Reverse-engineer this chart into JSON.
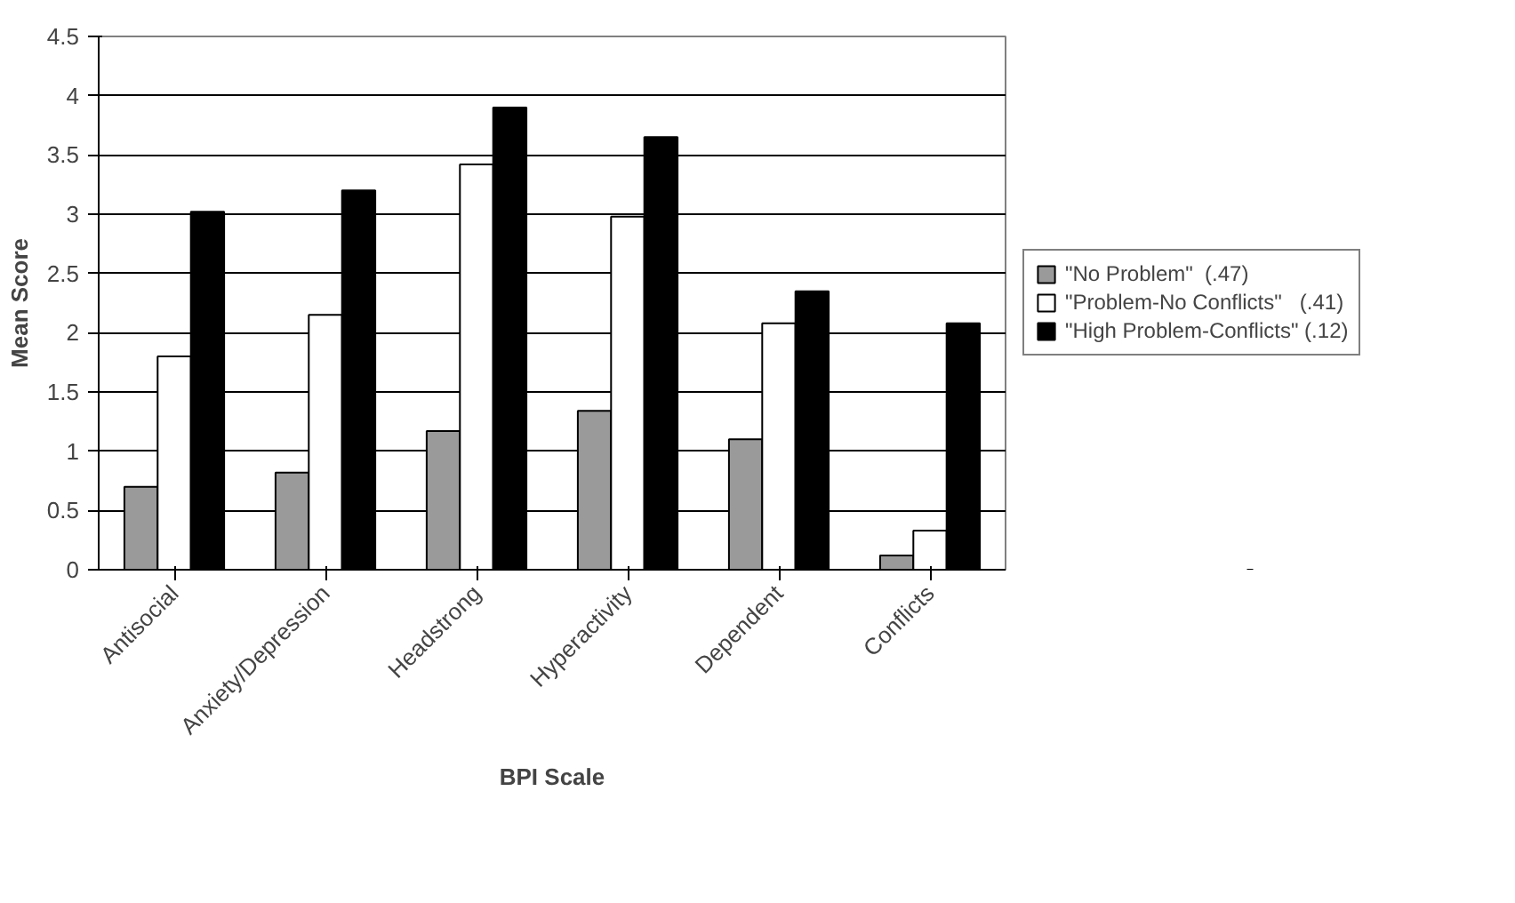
{
  "chart_data": {
    "type": "bar",
    "xlabel": "BPI Scale",
    "ylabel": "Mean Score",
    "categories": [
      "Antisocial",
      "Anxiety/Depression",
      "Headstrong",
      "Hyperactivity",
      "Dependent",
      "Conflicts"
    ],
    "series": [
      {
        "name": "\"No Problem\"  (.47)",
        "color": "#9a9a9a",
        "values": [
          0.7,
          0.82,
          1.17,
          1.34,
          1.1,
          0.12
        ]
      },
      {
        "name": "\"Problem-No Conflicts\"   (.41)",
        "color": "#ffffff",
        "values": [
          1.8,
          2.15,
          3.42,
          2.98,
          2.08,
          0.33
        ]
      },
      {
        "name": "\"High Problem-Conflicts\" (.12)",
        "color": "#000000",
        "values": [
          3.02,
          3.2,
          3.9,
          3.65,
          2.35,
          2.08
        ]
      }
    ],
    "ylim": [
      0,
      4.5
    ],
    "yticks": [
      0,
      0.5,
      1,
      1.5,
      2,
      2.5,
      3,
      3.5,
      4,
      4.5
    ],
    "grid": "y",
    "legend": "right"
  }
}
